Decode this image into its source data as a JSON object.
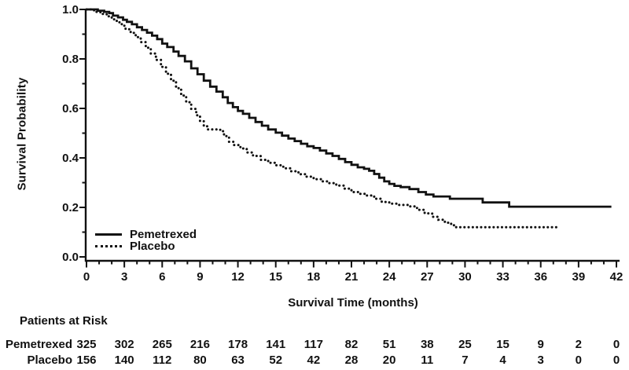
{
  "figure": {
    "background": "#ffffff",
    "ink": "#111111"
  },
  "chart_data": {
    "type": "line",
    "subtype": "kaplan-meier-step",
    "title": "",
    "xlabel": "Survival Time (months)",
    "ylabel": "Survival Probability",
    "xlim": [
      0,
      42
    ],
    "ylim": [
      0.0,
      1.0
    ],
    "x_major_ticks": [
      0,
      3,
      6,
      9,
      12,
      15,
      18,
      21,
      24,
      27,
      30,
      33,
      36,
      39,
      42
    ],
    "x_minor_step": 1,
    "y_major_ticks": [
      0.0,
      0.2,
      0.4,
      0.6,
      0.8,
      1.0
    ],
    "y_minor_step": 0.1,
    "grid": false,
    "legend_position": "inside-lower-left",
    "series": [
      {
        "name": "Pemetrexed",
        "line_style": "solid",
        "color": "#111111",
        "points": [
          [
            0,
            1.0
          ],
          [
            0.9,
            0.995
          ],
          [
            1.4,
            0.99
          ],
          [
            1.8,
            0.985
          ],
          [
            2.1,
            0.975
          ],
          [
            2.5,
            0.968
          ],
          [
            2.9,
            0.958
          ],
          [
            3.2,
            0.95
          ],
          [
            3.6,
            0.94
          ],
          [
            4.0,
            0.928
          ],
          [
            4.4,
            0.917
          ],
          [
            4.8,
            0.906
          ],
          [
            5.2,
            0.894
          ],
          [
            5.6,
            0.88
          ],
          [
            6.0,
            0.862
          ],
          [
            6.4,
            0.848
          ],
          [
            6.9,
            0.83
          ],
          [
            7.3,
            0.812
          ],
          [
            7.8,
            0.79
          ],
          [
            8.3,
            0.762
          ],
          [
            8.8,
            0.738
          ],
          [
            9.3,
            0.712
          ],
          [
            9.8,
            0.688
          ],
          [
            10.3,
            0.668
          ],
          [
            10.8,
            0.645
          ],
          [
            11.2,
            0.622
          ],
          [
            11.6,
            0.605
          ],
          [
            12.0,
            0.59
          ],
          [
            12.4,
            0.578
          ],
          [
            12.9,
            0.562
          ],
          [
            13.4,
            0.545
          ],
          [
            13.9,
            0.53
          ],
          [
            14.4,
            0.515
          ],
          [
            15.0,
            0.502
          ],
          [
            15.5,
            0.49
          ],
          [
            16.0,
            0.478
          ],
          [
            16.5,
            0.468
          ],
          [
            17.0,
            0.457
          ],
          [
            17.5,
            0.447
          ],
          [
            18.0,
            0.44
          ],
          [
            18.5,
            0.43
          ],
          [
            19.0,
            0.418
          ],
          [
            19.5,
            0.408
          ],
          [
            20.0,
            0.396
          ],
          [
            20.5,
            0.383
          ],
          [
            21.0,
            0.372
          ],
          [
            21.5,
            0.362
          ],
          [
            22.0,
            0.356
          ],
          [
            22.4,
            0.348
          ],
          [
            22.8,
            0.335
          ],
          [
            23.2,
            0.32
          ],
          [
            23.6,
            0.305
          ],
          [
            24.0,
            0.295
          ],
          [
            24.4,
            0.287
          ],
          [
            24.9,
            0.282
          ],
          [
            25.6,
            0.274
          ],
          [
            26.3,
            0.262
          ],
          [
            26.9,
            0.252
          ],
          [
            27.5,
            0.244
          ],
          [
            28.8,
            0.235
          ],
          [
            31.4,
            0.22
          ],
          [
            33.5,
            0.203
          ],
          [
            41.6,
            0.203
          ]
        ]
      },
      {
        "name": "Placebo",
        "line_style": "dotted",
        "color": "#111111",
        "points": [
          [
            0,
            1.0
          ],
          [
            0.6,
            0.99
          ],
          [
            1.1,
            0.982
          ],
          [
            1.6,
            0.972
          ],
          [
            2.0,
            0.96
          ],
          [
            2.4,
            0.948
          ],
          [
            2.8,
            0.934
          ],
          [
            3.1,
            0.92
          ],
          [
            3.5,
            0.905
          ],
          [
            3.9,
            0.888
          ],
          [
            4.3,
            0.868
          ],
          [
            4.7,
            0.845
          ],
          [
            5.1,
            0.822
          ],
          [
            5.5,
            0.796
          ],
          [
            5.9,
            0.768
          ],
          [
            6.3,
            0.74
          ],
          [
            6.7,
            0.712
          ],
          [
            7.1,
            0.682
          ],
          [
            7.5,
            0.652
          ],
          [
            7.9,
            0.625
          ],
          [
            8.3,
            0.598
          ],
          [
            8.7,
            0.572
          ],
          [
            9.0,
            0.548
          ],
          [
            9.3,
            0.528
          ],
          [
            9.6,
            0.515
          ],
          [
            10.6,
            0.508
          ],
          [
            10.9,
            0.488
          ],
          [
            11.3,
            0.465
          ],
          [
            11.7,
            0.452
          ],
          [
            12.2,
            0.438
          ],
          [
            12.7,
            0.422
          ],
          [
            13.2,
            0.408
          ],
          [
            13.8,
            0.392
          ],
          [
            14.4,
            0.38
          ],
          [
            15.0,
            0.37
          ],
          [
            15.6,
            0.358
          ],
          [
            16.2,
            0.346
          ],
          [
            16.8,
            0.334
          ],
          [
            17.4,
            0.324
          ],
          [
            18.0,
            0.314
          ],
          [
            18.6,
            0.305
          ],
          [
            19.2,
            0.298
          ],
          [
            19.8,
            0.288
          ],
          [
            20.4,
            0.276
          ],
          [
            21.0,
            0.262
          ],
          [
            21.6,
            0.255
          ],
          [
            22.2,
            0.248
          ],
          [
            22.8,
            0.235
          ],
          [
            23.4,
            0.222
          ],
          [
            24.0,
            0.215
          ],
          [
            24.7,
            0.21
          ],
          [
            25.5,
            0.204
          ],
          [
            26.2,
            0.19
          ],
          [
            26.8,
            0.176
          ],
          [
            27.4,
            0.162
          ],
          [
            27.9,
            0.15
          ],
          [
            28.4,
            0.138
          ],
          [
            28.9,
            0.128
          ],
          [
            29.3,
            0.12
          ],
          [
            37.3,
            0.12
          ]
        ]
      }
    ]
  },
  "risk_table": {
    "title": "Patients at Risk",
    "times": [
      0,
      3,
      6,
      9,
      12,
      15,
      18,
      21,
      24,
      27,
      30,
      33,
      36,
      39,
      42
    ],
    "rows": [
      {
        "name": "Pemetrexed",
        "counts": [
          325,
          302,
          265,
          216,
          178,
          141,
          117,
          82,
          51,
          38,
          25,
          15,
          9,
          2,
          0
        ]
      },
      {
        "name": "Placebo",
        "counts": [
          156,
          140,
          112,
          80,
          63,
          52,
          42,
          28,
          20,
          11,
          7,
          4,
          3,
          0,
          0
        ]
      }
    ]
  }
}
